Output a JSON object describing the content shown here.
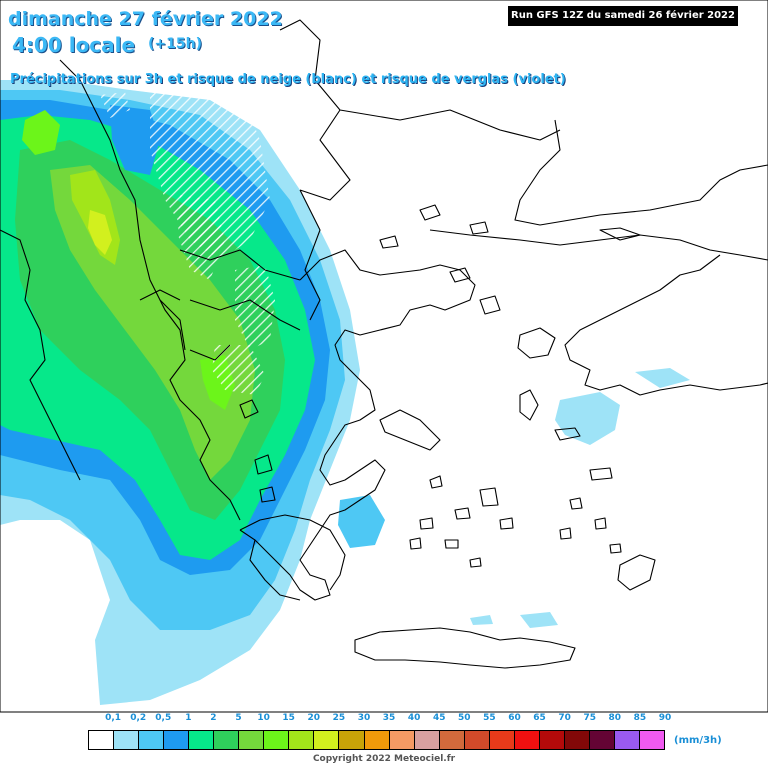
{
  "header": {
    "date": "dimanche 27 février 2022",
    "local_time": "4:00 locale",
    "lead_time": "(+15h)",
    "subtitle": "Précipitations sur 3h et risque de neige (blanc) et risque de verglas (violet)"
  },
  "run_label": "Run GFS 12Z du samedi 26 février 2022",
  "legend": {
    "unit": "(mm/3h)",
    "labels": [
      "0,1",
      "0,2",
      "0,5",
      "1",
      "2",
      "5",
      "10",
      "15",
      "20",
      "25",
      "30",
      "35",
      "40",
      "45",
      "50",
      "55",
      "60",
      "65",
      "70",
      "75",
      "80",
      "85",
      "90"
    ],
    "colors": [
      "#ffffff",
      "#9ee3f7",
      "#4ec8f4",
      "#1e9bf0",
      "#06e88a",
      "#2fd05c",
      "#74d83c",
      "#6cf51a",
      "#a2e51a",
      "#d2f01e",
      "#c8a408",
      "#f09a0a",
      "#f59a64",
      "#d8a0a0",
      "#d26a3c",
      "#d24a2a",
      "#e83a1a",
      "#f01010",
      "#b40a0a",
      "#820808",
      "#640434",
      "#9a5af0",
      "#f05af0"
    ]
  },
  "copyright": "Copyright 2022 Meteociel.fr"
}
